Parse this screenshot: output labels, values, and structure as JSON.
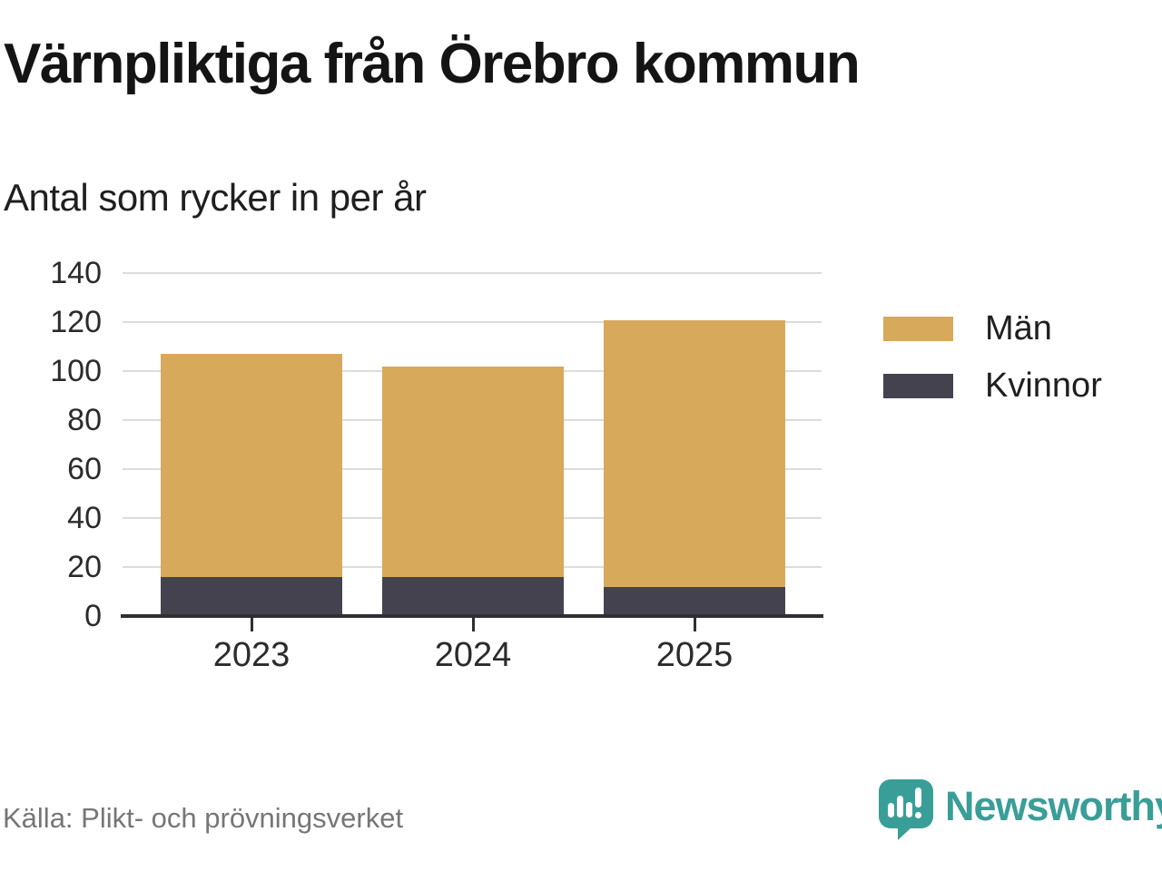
{
  "header": {
    "title": "Värnpliktiga från Örebro kommun",
    "subtitle": "Antal som rycker in per år"
  },
  "chart_data": {
    "type": "bar",
    "stacked": true,
    "title": "Värnpliktiga från Örebro kommun",
    "subtitle": "Antal som rycker in per år",
    "categories": [
      "2023",
      "2024",
      "2025"
    ],
    "series": [
      {
        "name": "Män",
        "color": "#d7a95b",
        "values": [
          91,
          86,
          109
        ]
      },
      {
        "name": "Kvinnor",
        "color": "#454250",
        "values": [
          16,
          16,
          12
        ]
      }
    ],
    "stacked_totals": [
      107,
      102,
      121
    ],
    "bottom_series": "Kvinnor",
    "ylim": [
      0,
      140
    ],
    "yticks": [
      0,
      20,
      40,
      60,
      80,
      100,
      120,
      140
    ],
    "grid": "horizontal",
    "legend_position": "right"
  },
  "footer": {
    "source": "Källa: Plikt- och prövningsverket",
    "brand": "Newsworthy"
  },
  "colors": {
    "men": "#d7a95b",
    "women": "#454250",
    "brand_teal": "#3a9e98",
    "grid": "#dcdcdc",
    "axis": "#2f2e33",
    "text": "#2b2b2b",
    "muted_text": "#767676"
  },
  "icons": {
    "brand_logo": "newsworthy-speech-bubble-bar-chart-icon"
  }
}
